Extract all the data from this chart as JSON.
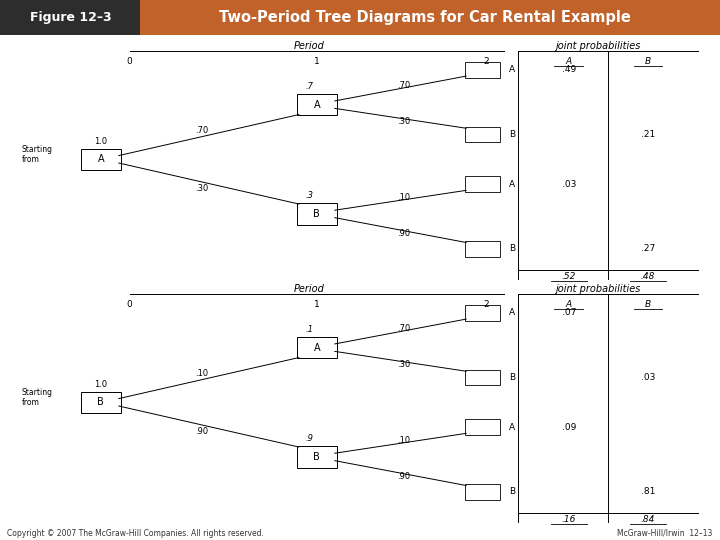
{
  "title_left": "Figure 12–3",
  "title_right": "Two-Period Tree Diagrams for Car Rental Example",
  "title_bg_left": "#3a3a3a",
  "title_bg_right": "#c0622a",
  "footer_left": "Copyright © 2007 The McGraw-Hill Companies. All rights reserved.",
  "footer_right": "McGraw-Hill/Irwin  12–13",
  "diagram1": {
    "period_label": "Period",
    "joint_label": "joint probabilities",
    "col0": "0",
    "col1": "1",
    "col2": "2",
    "colA": "A",
    "colB": "B",
    "starting_from": "Starting\nfrom",
    "root_label": "A",
    "root_prob": "1.0",
    "branch_up_prob": ".70",
    "branch_up_label": "A",
    "branch_up_sub_up_prob": ".7",
    "branch_up_sub_up_trans": ".70",
    "branch_up_sub_up_label": "A",
    "branch_up_sub_dn_trans": ".30",
    "branch_up_sub_dn_label": "B",
    "branch_dn_prob": ".30",
    "branch_dn_label": "B",
    "branch_dn_sub_up_prob": ".3",
    "branch_dn_sub_up_trans": ".10",
    "branch_dn_sub_up_label": "A",
    "branch_dn_sub_dn_trans": ".90",
    "branch_dn_sub_dn_label": "B",
    "jp_AA": ".49",
    "jp_AB": ".21",
    "jp_BA": ".03",
    "jp_BB": ".27",
    "sum_A": ".52",
    "sum_B": ".48"
  },
  "diagram2": {
    "period_label": "Period",
    "joint_label": "joint probabilities",
    "col0": "0",
    "col1": "1",
    "col2": "2",
    "colA": "A",
    "colB": "B",
    "starting_from": "Starting\nfrom",
    "root_label": "B",
    "root_prob": "1.0",
    "branch_up_prob": ".10",
    "branch_up_label": "A",
    "branch_up_sub_up_prob": ".1",
    "branch_up_sub_up_trans": ".70",
    "branch_up_sub_up_label": "A",
    "branch_up_sub_dn_trans": ".30",
    "branch_up_sub_dn_label": "B",
    "branch_dn_prob": ".90",
    "branch_dn_label": "B",
    "branch_dn_sub_up_prob": ".9",
    "branch_dn_sub_up_trans": ".10",
    "branch_dn_sub_up_label": "A",
    "branch_dn_sub_dn_trans": ".90",
    "branch_dn_sub_dn_label": "B",
    "jp_AA": ".07",
    "jp_AB": ".03",
    "jp_BA": ".09",
    "jp_BB": ".81",
    "sum_A": ".16",
    "sum_B": ".84"
  }
}
